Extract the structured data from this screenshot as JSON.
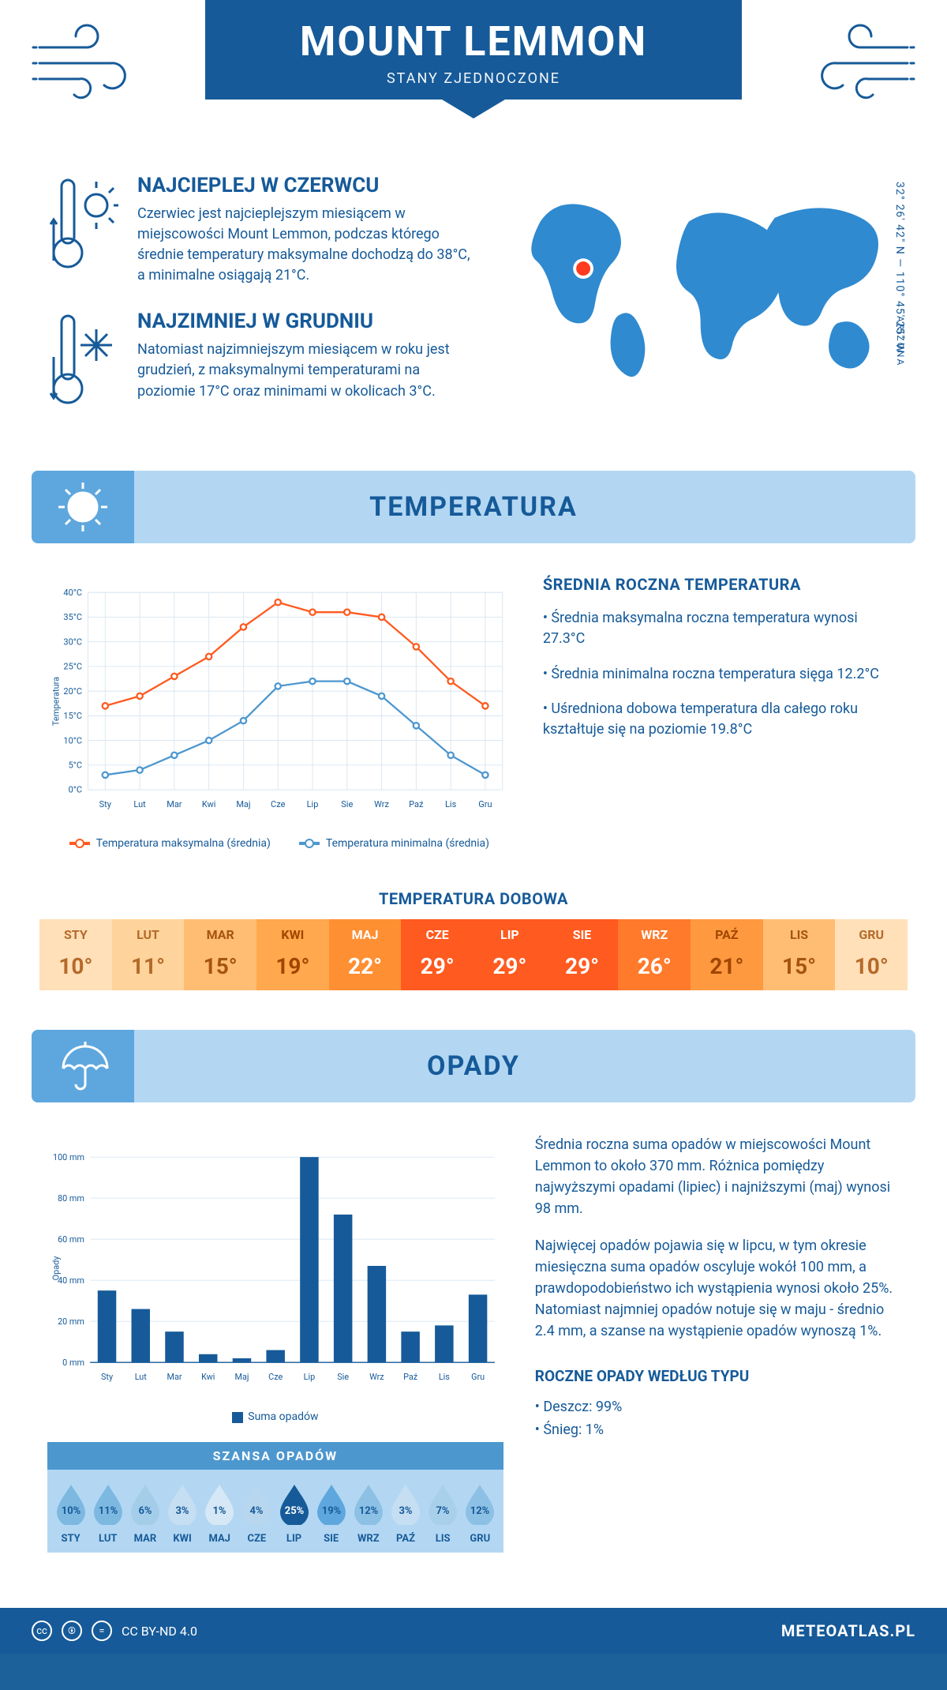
{
  "colors": {
    "brand": "#165a99",
    "band_light": "#b3d7f2",
    "band_mid": "#5ea7de",
    "max_line": "#ff5a1f",
    "min_line": "#4d97cf",
    "grid": "#d8e6f2",
    "bar": "#165a99"
  },
  "header": {
    "title": "MOUNT LEMMON",
    "subtitle": "STANY ZJEDNOCZONE"
  },
  "intro": {
    "warmest": {
      "title": "NAJCIEPLEJ W CZERWCU",
      "text": "Czerwiec jest najcieplejszym miesiącem w miejscowości Mount Lemmon, podczas którego średnie temperatury maksymalne dochodzą do 38°C, a minimalne osiągają 21°C."
    },
    "coldest": {
      "title": "NAJZIMNIEJ W GRUDNIU",
      "text": "Natomiast najzimniejszym miesiącem w roku jest grudzień, z maksymalnymi temperaturami na poziomie 17°C oraz minimami w okolicach 3°C."
    },
    "coords": "32° 26' 42\" N — 110° 45' 25\" W",
    "region": "ARIZONA"
  },
  "temperature": {
    "section_title": "TEMPERATURA",
    "chart": {
      "type": "line",
      "months": [
        "Sty",
        "Lut",
        "Mar",
        "Kwi",
        "Maj",
        "Cze",
        "Lip",
        "Sie",
        "Wrz",
        "Paź",
        "Lis",
        "Gru"
      ],
      "max_series": [
        17,
        19,
        23,
        27,
        33,
        38,
        36,
        36,
        35,
        29,
        22,
        17
      ],
      "min_series": [
        3,
        4,
        7,
        10,
        14,
        21,
        22,
        22,
        19,
        13,
        7,
        3
      ],
      "ylabel": "Temperatura",
      "ylim": [
        0,
        40
      ],
      "ytick_step": 5,
      "y_unit": "°C",
      "legend_max": "Temperatura maksymalna (średnia)",
      "legend_min": "Temperatura minimalna (średnia)"
    },
    "info_title": "ŚREDNIA ROCZNA TEMPERATURA",
    "info_items": [
      "Średnia maksymalna roczna temperatura wynosi 27.3°C",
      "Średnia minimalna roczna temperatura sięga 12.2°C",
      "Uśredniona dobowa temperatura dla całego roku kształtuje się na poziomie 19.8°C"
    ],
    "daily": {
      "title": "TEMPERATURA DOBOWA",
      "months": [
        "STY",
        "LUT",
        "MAR",
        "KWI",
        "MAJ",
        "CZE",
        "LIP",
        "SIE",
        "WRZ",
        "PAŹ",
        "LIS",
        "GRU"
      ],
      "values": [
        "10°",
        "11°",
        "15°",
        "19°",
        "22°",
        "29°",
        "29°",
        "29°",
        "26°",
        "21°",
        "15°",
        "10°"
      ],
      "bg_colors": [
        "#ffe0b8",
        "#ffd39c",
        "#ffbd73",
        "#ffa84d",
        "#ff8f33",
        "#ff5a1f",
        "#ff5a1f",
        "#ff5a1f",
        "#ff7a2b",
        "#ff9940",
        "#ffbd73",
        "#ffe0b8"
      ],
      "text_colors": [
        "#b56a2a",
        "#b56a2a",
        "#a55410",
        "#a04600",
        "#ffffff",
        "#ffffff",
        "#ffffff",
        "#ffffff",
        "#ffffff",
        "#a04600",
        "#a55410",
        "#b56a2a"
      ]
    }
  },
  "precip": {
    "section_title": "OPADY",
    "chart": {
      "type": "bar",
      "months": [
        "Sty",
        "Lut",
        "Mar",
        "Kwi",
        "Maj",
        "Cze",
        "Lip",
        "Sie",
        "Wrz",
        "Paź",
        "Lis",
        "Gru"
      ],
      "values": [
        35,
        26,
        15,
        4,
        2,
        6,
        100,
        72,
        47,
        15,
        18,
        33
      ],
      "ylabel": "Opady",
      "ylim": [
        0,
        100
      ],
      "ytick_step": 20,
      "y_unit": " mm",
      "legend": "Suma opadów",
      "bar_color": "#165a99"
    },
    "text1": "Średnia roczna suma opadów w miejscowości Mount Lemmon to około 370 mm. Różnica pomiędzy najwyższymi opadami (lipiec) i najniższymi (maj) wynosi 98 mm.",
    "text2": "Najwięcej opadów pojawia się w lipcu, w tym okresie miesięczna suma opadów oscyluje wokół 100 mm, a prawdopodobieństwo ich wystąpienia wynosi około 25%. Natomiast najmniej opadów notuje się w maju - średnio 2.4 mm, a szanse na wystąpienie opadów wynoszą 1%.",
    "type_title": "ROCZNE OPADY WEDŁUG TYPU",
    "type_items": [
      "Deszcz: 99%",
      "Śnieg: 1%"
    ],
    "chance": {
      "title": "SZANSA OPADÓW",
      "months": [
        "STY",
        "LUT",
        "MAR",
        "KWI",
        "MAJ",
        "CZE",
        "LIP",
        "SIE",
        "WRZ",
        "PAŹ",
        "LIS",
        "GRU"
      ],
      "values": [
        "10%",
        "11%",
        "6%",
        "3%",
        "1%",
        "4%",
        "25%",
        "19%",
        "12%",
        "3%",
        "7%",
        "12%"
      ],
      "fills": [
        "#7db8e0",
        "#7db8e0",
        "#a3cde9",
        "#c5def1",
        "#d6e8f5",
        "#b8d7ee",
        "#165a99",
        "#5ea7de",
        "#8cc0e4",
        "#c5def1",
        "#a9d0ea",
        "#8cc0e4"
      ],
      "text_colors": [
        "#165a99",
        "#165a99",
        "#165a99",
        "#165a99",
        "#165a99",
        "#165a99",
        "#ffffff",
        "#165a99",
        "#165a99",
        "#165a99",
        "#165a99",
        "#165a99"
      ]
    }
  },
  "footer": {
    "license": "CC BY-ND 4.0",
    "site": "METEOATLAS.PL"
  }
}
